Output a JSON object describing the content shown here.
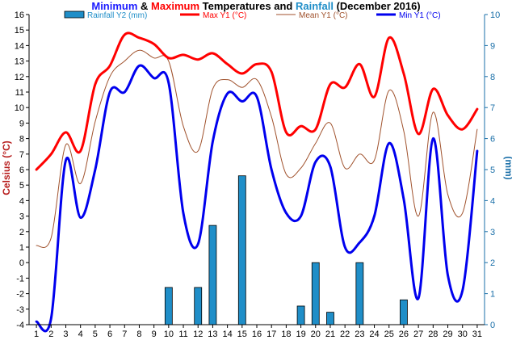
{
  "chart_data": {
    "type": "line",
    "title_parts": [
      {
        "text": "Minimum",
        "color": "#1a1aff"
      },
      {
        "text": " & ",
        "color": "#000000"
      },
      {
        "text": "Maximum",
        "color": "#ff0000"
      },
      {
        "text": " Temperatures and ",
        "color": "#000000"
      },
      {
        "text": "Rainfall",
        "color": "#1f8ec8"
      },
      {
        "text": " (December 2016)",
        "color": "#000000"
      }
    ],
    "ylabel": "Celsius (°C)",
    "y2label": "(mm)",
    "ylim": [
      -4,
      16
    ],
    "y2lim": [
      0,
      10
    ],
    "yticks": [
      -4,
      -3,
      -2,
      -1,
      0,
      1,
      2,
      3,
      4,
      5,
      6,
      7,
      8,
      9,
      10,
      11,
      12,
      13,
      14,
      15,
      16
    ],
    "y2ticks": [
      0,
      1,
      2,
      3,
      4,
      5,
      6,
      7,
      8,
      9,
      10
    ],
    "x": [
      1,
      2,
      3,
      4,
      5,
      6,
      7,
      8,
      9,
      10,
      11,
      12,
      13,
      14,
      15,
      16,
      17,
      18,
      19,
      20,
      21,
      22,
      23,
      24,
      25,
      26,
      27,
      28,
      29,
      30,
      31
    ],
    "series": [
      {
        "name": "Rainfall Y2 (mm)",
        "kind": "bar",
        "axis": "y2",
        "color": "#1f8ec8",
        "values": [
          0,
          0,
          0,
          0,
          0,
          0,
          0,
          0,
          0,
          1.2,
          0,
          1.2,
          3.2,
          0,
          4.8,
          0,
          0,
          0,
          0.6,
          2.0,
          0.4,
          0,
          2.0,
          0,
          0,
          0.8,
          0,
          0,
          0,
          0,
          0
        ]
      },
      {
        "name": "Max Y1 (°C)",
        "kind": "line",
        "axis": "y1",
        "color": "#ff0000",
        "width": 3,
        "values": [
          6.0,
          7.0,
          8.4,
          7.2,
          11.5,
          12.7,
          14.7,
          14.5,
          14.1,
          13.2,
          13.4,
          13.1,
          13.5,
          12.8,
          12.2,
          12.8,
          12.3,
          8.4,
          8.8,
          8.6,
          11.5,
          11.3,
          12.8,
          10.7,
          14.5,
          12.2,
          8.3,
          11.2,
          9.5,
          8.6,
          9.9
        ]
      },
      {
        "name": "Mean Y1 (°C)",
        "kind": "line",
        "axis": "y1",
        "color": "#a0522d",
        "width": 1,
        "values": [
          1.1,
          1.6,
          7.6,
          5.1,
          9.1,
          12.0,
          13.0,
          13.7,
          13.2,
          13.0,
          8.8,
          7.2,
          11.2,
          11.8,
          11.3,
          11.8,
          9.4,
          5.7,
          6.1,
          7.7,
          9.0,
          6.1,
          7.0,
          6.6,
          11.1,
          8.5,
          3.0,
          9.7,
          4.4,
          3.2,
          8.6
        ]
      },
      {
        "name": "Min Y1 (°C)",
        "kind": "line",
        "axis": "y1",
        "color": "#0000ee",
        "width": 3,
        "values": [
          -3.8,
          -3.6,
          6.6,
          2.9,
          6.0,
          11.0,
          11.0,
          12.7,
          11.9,
          11.6,
          3.2,
          1.2,
          7.8,
          10.9,
          10.4,
          10.7,
          6.0,
          3.2,
          3.0,
          6.5,
          6.2,
          1.0,
          1.3,
          3.0,
          7.7,
          4.1,
          -2.3,
          8.0,
          -0.8,
          -1.8,
          7.2
        ]
      }
    ],
    "legend_placement": "top",
    "grid": false
  }
}
